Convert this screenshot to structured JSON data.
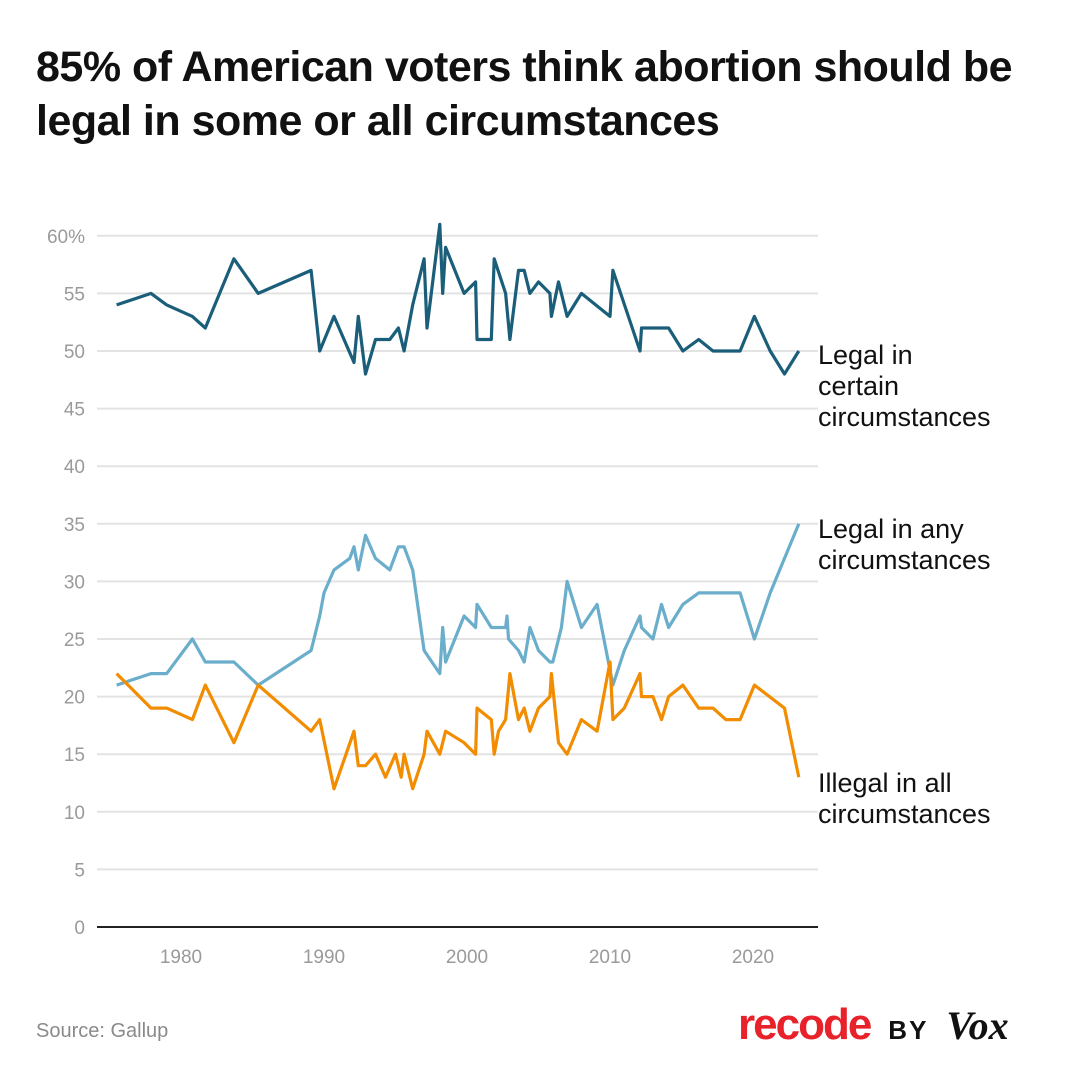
{
  "title": "85% of American voters think abortion should be legal in some or all circumstances",
  "source": "Source: Gallup",
  "logo": {
    "brand": "recode",
    "by": "BY",
    "partner": "Vox"
  },
  "chart_data": {
    "type": "line",
    "xlabel": "",
    "ylabel": "",
    "xlim": [
      1974,
      2024.5
    ],
    "ylim": [
      0,
      60
    ],
    "x_ticks": [
      1980,
      1990,
      2000,
      2010,
      2020
    ],
    "y_ticks": [
      0,
      5,
      10,
      15,
      20,
      25,
      30,
      35,
      40,
      45,
      50,
      55,
      60
    ],
    "y_tick_labels": [
      "0",
      "5",
      "10",
      "15",
      "20",
      "25",
      "30",
      "35",
      "40",
      "45",
      "50",
      "55",
      "60%"
    ],
    "grid": true,
    "legend": "direct labels at line ends (right)",
    "series": [
      {
        "name": "Legal in certain circumstances",
        "label_lines": [
          "Legal in",
          "certain",
          "circumstances"
        ],
        "color": "#1a5e7a",
        "x": [
          1975.5,
          1977.9,
          1979,
          1980.8,
          1981.7,
          1983.7,
          1985.4,
          1989.1,
          1989.7,
          1990.7,
          1992.1,
          1992.4,
          1992.9,
          1993.6,
          1994.6,
          1995.2,
          1995.6,
          1996.2,
          1997,
          1997.2,
          1998.1,
          1998.3,
          1998.5,
          1999.8,
          2000.6,
          2000.7,
          2001.7,
          2001.9,
          2002.7,
          2003,
          2003.6,
          2004,
          2004.4,
          2005,
          2005.8,
          2005.9,
          2006.4,
          2007,
          2008,
          2010,
          2010.2,
          2012.1,
          2012.2,
          2013,
          2014.1,
          2015.1,
          2016.2,
          2017.2,
          2019.1,
          2020.1,
          2021.2,
          2022.2,
          2023.2
        ],
        "y": [
          54,
          55,
          54,
          53,
          52,
          58,
          55,
          57,
          50,
          53,
          49,
          53,
          48,
          51,
          51,
          52,
          50,
          54,
          58,
          52,
          61,
          55,
          59,
          55,
          56,
          51,
          51,
          58,
          55,
          51,
          57,
          57,
          55,
          56,
          55,
          53,
          56,
          53,
          55,
          53,
          57,
          50,
          52,
          52,
          52,
          50,
          51,
          50,
          50,
          53,
          50,
          48,
          50
        ]
      },
      {
        "name": "Legal in any circumstances",
        "label_lines": [
          "Legal in any",
          "circumstances"
        ],
        "color": "#6aaecb",
        "x": [
          1975.5,
          1977.9,
          1979,
          1980.8,
          1981.7,
          1983.7,
          1985.4,
          1989.1,
          1989.7,
          1990,
          1990.7,
          1991.8,
          1992.1,
          1992.4,
          1992.9,
          1993.6,
          1994.6,
          1995.2,
          1995.6,
          1996.2,
          1997,
          1998.1,
          1998.3,
          1998.5,
          1999.8,
          2000.6,
          2000.7,
          2001.7,
          2002.7,
          2002.8,
          2002.9,
          2003.6,
          2004,
          2004.4,
          2005,
          2005.8,
          2006,
          2006.2,
          2006.6,
          2007,
          2008,
          2009.1,
          2010.2,
          2011,
          2012.1,
          2012.2,
          2013,
          2013.6,
          2014.1,
          2015.1,
          2016.2,
          2019.1,
          2020.1,
          2021.2,
          2023.2
        ],
        "y": [
          21,
          22,
          22,
          25,
          23,
          23,
          21,
          24,
          27,
          29,
          31,
          32,
          33,
          31,
          34,
          32,
          31,
          33,
          33,
          31,
          24,
          22,
          26,
          23,
          27,
          26,
          28,
          26,
          26,
          27,
          25,
          24,
          23,
          26,
          24,
          23,
          23,
          24,
          26,
          30,
          26,
          28,
          21,
          24,
          27,
          26,
          25,
          28,
          26,
          28,
          29,
          29,
          25,
          29,
          35
        ]
      },
      {
        "name": "Illegal in all circumstances",
        "label_lines": [
          "Illegal in all",
          "circumstances"
        ],
        "color": "#f28c00",
        "x": [
          1975.5,
          1977.9,
          1979,
          1980.8,
          1981.7,
          1983.7,
          1985.4,
          1989.1,
          1989.7,
          1990.7,
          1992.1,
          1992.4,
          1992.9,
          1993.6,
          1994.3,
          1995,
          1995.4,
          1995.6,
          1996.2,
          1997,
          1997.2,
          1998.1,
          1998.5,
          1999.8,
          2000.6,
          2000.7,
          2001.7,
          2001.9,
          2002.2,
          2002.7,
          2003,
          2003.6,
          2004,
          2004.4,
          2005,
          2005.8,
          2005.9,
          2006.4,
          2007,
          2008,
          2009.1,
          2010,
          2010.2,
          2011,
          2012.1,
          2012.2,
          2013,
          2013.6,
          2014.1,
          2015.1,
          2016.2,
          2017.2,
          2018.1,
          2019.1,
          2020.1,
          2022.2,
          2023.2
        ],
        "y": [
          22,
          19,
          19,
          18,
          21,
          16,
          21,
          17,
          18,
          12,
          17,
          14,
          14,
          15,
          13,
          15,
          13,
          15,
          12,
          15,
          17,
          15,
          17,
          16,
          15,
          19,
          18,
          15,
          17,
          18,
          22,
          18,
          19,
          17,
          19,
          20,
          22,
          16,
          15,
          18,
          17,
          23,
          18,
          19,
          22,
          20,
          20,
          18,
          20,
          21,
          19,
          19,
          18,
          18,
          21,
          19,
          13
        ]
      }
    ]
  }
}
